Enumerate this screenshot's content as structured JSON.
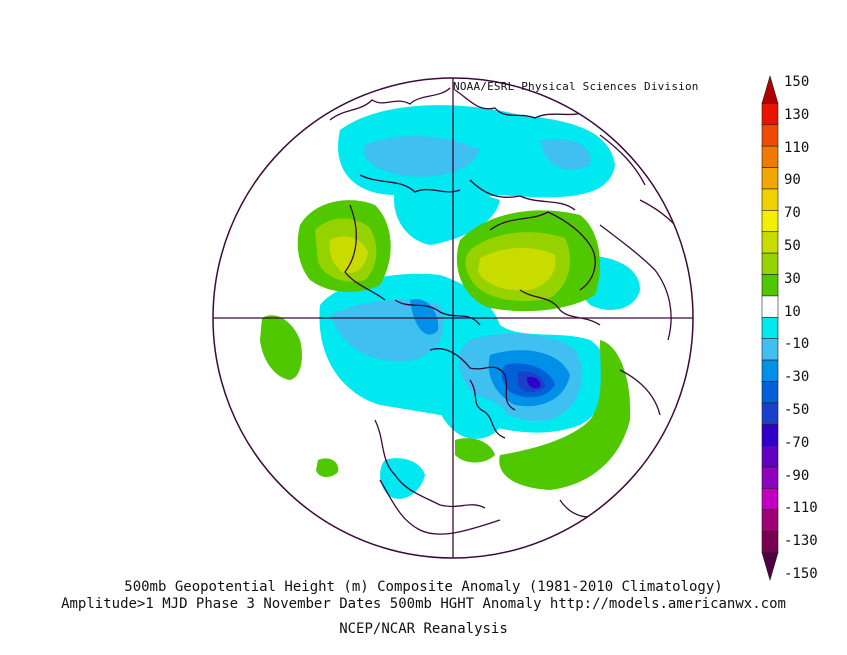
{
  "credit": "NOAA/ESRL Physical Sciences Division",
  "caption": {
    "line1": "500mb Geopotential Height (m) Composite Anomaly (1981-2010 Climatology)",
    "line2": "Amplitude>1 MJD Phase 3 November Dates 500mb HGHT Anomaly http://models.americanwx.com",
    "line3": "NCEP/NCAR Reanalysis"
  },
  "colorbar": {
    "labels": [
      "150",
      "130",
      "110",
      "90",
      "70",
      "50",
      "30",
      "10",
      "-10",
      "-30",
      "-50",
      "-70",
      "-90",
      "-110",
      "-130",
      "-150"
    ],
    "colors": [
      "#b00000",
      "#e81400",
      "#f04a00",
      "#f07a00",
      "#f0a800",
      "#f0d000",
      "#f0f000",
      "#c8dc00",
      "#96d200",
      "#50c800",
      "#ffffff",
      "#00e8f0",
      "#40c0f0",
      "#0090e8",
      "#0060d8",
      "#1840c8",
      "#3000c8",
      "#6000c0",
      "#9000c0",
      "#c000c0",
      "#a00078",
      "#780050",
      "#500040"
    ]
  },
  "anomaly_regions": [
    {
      "name": "north-pacific-positive",
      "sign": "positive",
      "level": "50"
    },
    {
      "name": "north-atlantic-greenland-positive",
      "sign": "positive",
      "level": "50"
    },
    {
      "name": "hudson-bay-negative",
      "sign": "negative",
      "level": "-50"
    },
    {
      "name": "siberia-negative",
      "sign": "negative",
      "level": "-30"
    },
    {
      "name": "arctic-negative",
      "sign": "negative",
      "level": "-30"
    },
    {
      "name": "western-atlantic-positive",
      "sign": "positive",
      "level": "30"
    },
    {
      "name": "central-pacific-positive",
      "sign": "positive",
      "level": "30"
    }
  ]
}
